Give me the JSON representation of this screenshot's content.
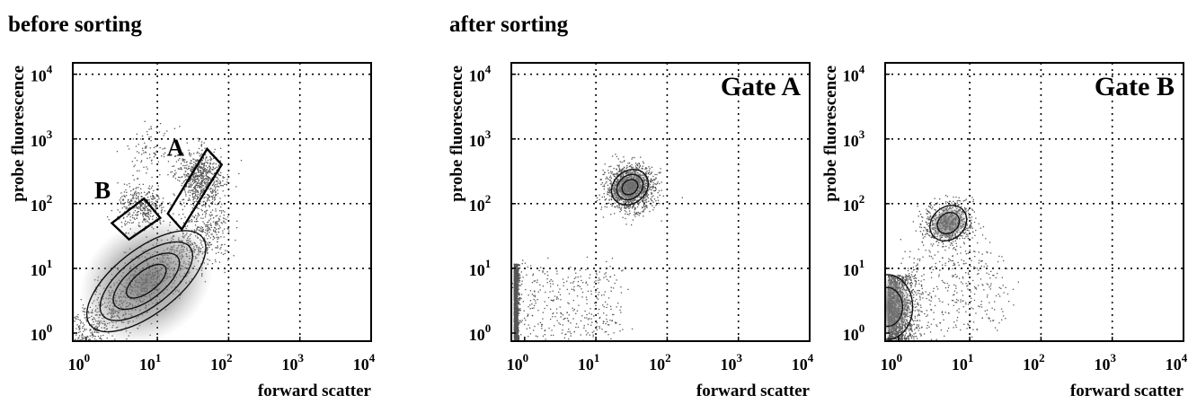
{
  "titles": {
    "before": "before sorting",
    "after": "after sorting"
  },
  "chart_data": [
    {
      "type": "scatter",
      "id": "before",
      "title": "",
      "xlabel": "forward scatter",
      "ylabel": "probe fluorescence",
      "xscale": "log",
      "yscale": "log",
      "xlim": [
        0.65,
        10000
      ],
      "ylim": [
        0.75,
        15000
      ],
      "xticks": [
        "10^0",
        "10^1",
        "10^2",
        "10^3",
        "10^4"
      ],
      "yticks": [
        "10^0",
        "10^1",
        "10^2",
        "10^3",
        "10^4"
      ],
      "grid": true,
      "annotations": [
        "A",
        "B"
      ],
      "populations": [
        {
          "x": [
            0.7,
            70
          ],
          "y": [
            0.8,
            50
          ],
          "shape": "diagonal smear",
          "density": "high",
          "contours": 4
        },
        {
          "x": 40,
          "y": 250,
          "shape": "diagonal band",
          "density": "medium"
        },
        {
          "x": 6,
          "y": 90,
          "density": "low"
        },
        {
          "x": 8,
          "y": 700,
          "density": "sparse"
        }
      ],
      "gates": [
        {
          "name": "A",
          "corners": [
            [
              14,
              70
            ],
            [
              22,
              40
            ],
            [
              80,
              400
            ],
            [
              50,
              700
            ]
          ]
        },
        {
          "name": "B",
          "corners": [
            [
              2.3,
              50
            ],
            [
              4,
              28
            ],
            [
              11,
              60
            ],
            [
              6.5,
              120
            ]
          ]
        }
      ]
    },
    {
      "type": "scatter",
      "id": "gateA",
      "title": "Gate A",
      "xlabel": "forward scatter",
      "ylabel": "probe fluorescence",
      "xscale": "log",
      "yscale": "log",
      "xlim": [
        0.65,
        10000
      ],
      "ylim": [
        0.75,
        15000
      ],
      "xticks": [
        "10^0",
        "10^1",
        "10^2",
        "10^3",
        "10^4"
      ],
      "yticks": [
        "10^0",
        "10^1",
        "10^2",
        "10^3",
        "10^4"
      ],
      "grid": true,
      "populations": [
        {
          "x": 30,
          "y": 180,
          "density": "high",
          "contours": 3
        },
        {
          "x": 0.7,
          "y": [
            0.8,
            12
          ],
          "shape": "left edge band",
          "density": "high"
        },
        {
          "x": [
            0.8,
            20
          ],
          "y": [
            0.8,
            10
          ],
          "density": "low"
        }
      ]
    },
    {
      "type": "scatter",
      "id": "gateB",
      "title": "Gate B",
      "xlabel": "forward scatter",
      "ylabel": "probe fluorescence",
      "xscale": "log",
      "yscale": "log",
      "xlim": [
        0.65,
        10000
      ],
      "ylim": [
        0.75,
        15000
      ],
      "xticks": [
        "10^0",
        "10^1",
        "10^2",
        "10^3",
        "10^4"
      ],
      "yticks": [
        "10^0",
        "10^1",
        "10^2",
        "10^3",
        "10^4"
      ],
      "grid": true,
      "populations": [
        {
          "x": 5,
          "y": 50,
          "density": "medium",
          "contours": 2
        },
        {
          "x": [
            0.7,
            3
          ],
          "y": [
            0.8,
            8
          ],
          "shape": "left edge lobe",
          "density": "high",
          "contours": 2
        },
        {
          "x": [
            1,
            30
          ],
          "y": [
            1,
            20
          ],
          "density": "low"
        }
      ]
    }
  ]
}
